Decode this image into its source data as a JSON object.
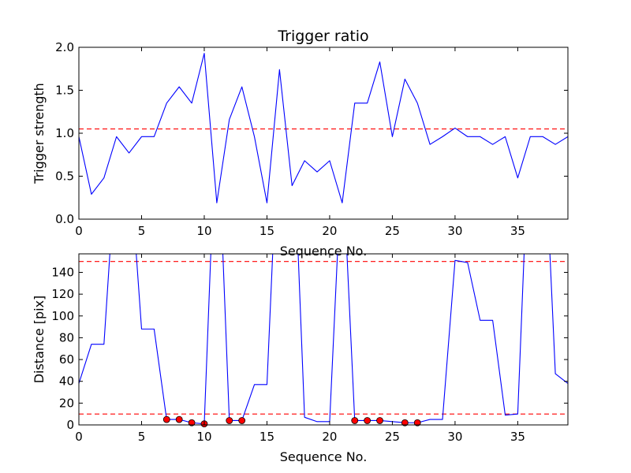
{
  "chart_data": [
    {
      "type": "line",
      "title": "Trigger ratio",
      "xlabel": "Sequence No.",
      "ylabel": "Trigger strength",
      "xlim": [
        0,
        39
      ],
      "ylim": [
        0,
        2.0
      ],
      "xticks": [
        0,
        5,
        10,
        15,
        20,
        25,
        30,
        35
      ],
      "xtick_labels": [
        "0",
        "5",
        "10",
        "15",
        "20",
        "25",
        "30",
        "35"
      ],
      "yticks": [
        0,
        0.5,
        1.0,
        1.5,
        2.0
      ],
      "ytick_labels": [
        "0.0",
        "0.5",
        "1.0",
        "1.5",
        "2.0"
      ],
      "grid": false,
      "series": [
        {
          "color": "#0000ff",
          "x": [
            0,
            1,
            2,
            3,
            4,
            5,
            6,
            7,
            8,
            9,
            10,
            11,
            12,
            13,
            14,
            15,
            16,
            17,
            18,
            19,
            20,
            21,
            22,
            23,
            24,
            25,
            26,
            27,
            28,
            29,
            30,
            31,
            32,
            33,
            34,
            35,
            36,
            37,
            38,
            39
          ],
          "values": [
            0.96,
            0.29,
            0.48,
            0.96,
            0.77,
            0.96,
            0.96,
            1.35,
            1.54,
            1.35,
            1.93,
            0.19,
            1.16,
            1.54,
            0.96,
            0.19,
            1.74,
            0.39,
            0.68,
            0.55,
            0.68,
            0.19,
            1.35,
            1.35,
            1.83,
            0.96,
            1.63,
            1.35,
            0.87,
            0.96,
            1.06,
            0.96,
            0.96,
            0.87,
            0.96,
            0.48,
            0.96,
            0.96,
            0.87,
            0.96
          ]
        }
      ],
      "hlines": [
        {
          "y": 1.05,
          "color": "#ff0000",
          "style": "dashed"
        }
      ]
    },
    {
      "type": "line",
      "title": "",
      "xlabel": "Sequence No.",
      "ylabel": "Distance [pix]",
      "xlim": [
        0,
        39
      ],
      "ylim": [
        0,
        157
      ],
      "xticks": [
        0,
        5,
        10,
        15,
        20,
        25,
        30,
        35
      ],
      "xtick_labels": [
        "0",
        "5",
        "10",
        "15",
        "20",
        "25",
        "30",
        "35"
      ],
      "yticks": [
        0,
        20,
        40,
        60,
        80,
        100,
        120,
        140
      ],
      "ytick_labels": [
        "0",
        "20",
        "40",
        "60",
        "80",
        "100",
        "120",
        "140"
      ],
      "grid": false,
      "series": [
        {
          "color": "#0000ff",
          "x": [
            0,
            1,
            2,
            3,
            4,
            5,
            6,
            7,
            8,
            9,
            10,
            11,
            12,
            13,
            14,
            15,
            16,
            17,
            18,
            19,
            20,
            21,
            22,
            23,
            24,
            25,
            26,
            27,
            28,
            29,
            30,
            31,
            32,
            33,
            34,
            35,
            36,
            37,
            38,
            39
          ],
          "values": [
            38,
            74,
            74,
            250,
            250,
            88,
            88,
            5,
            5,
            2,
            1,
            300,
            4,
            4,
            37,
            37,
            300,
            300,
            7,
            3,
            3,
            250,
            4,
            4,
            4,
            3,
            2,
            2,
            5,
            5,
            151,
            149,
            96,
            96,
            9,
            10,
            300,
            300,
            47,
            38
          ]
        }
      ],
      "markers": {
        "color": "#ff0000",
        "x": [
          7,
          8,
          9,
          10,
          12,
          13,
          22,
          23,
          24,
          26,
          27
        ],
        "values": [
          5,
          5,
          2,
          1,
          4,
          4,
          4,
          4,
          4,
          2,
          2
        ]
      },
      "hlines": [
        {
          "y": 150,
          "color": "#ff0000",
          "style": "dashed"
        },
        {
          "y": 10,
          "color": "#ff0000",
          "style": "dashed"
        }
      ]
    }
  ]
}
